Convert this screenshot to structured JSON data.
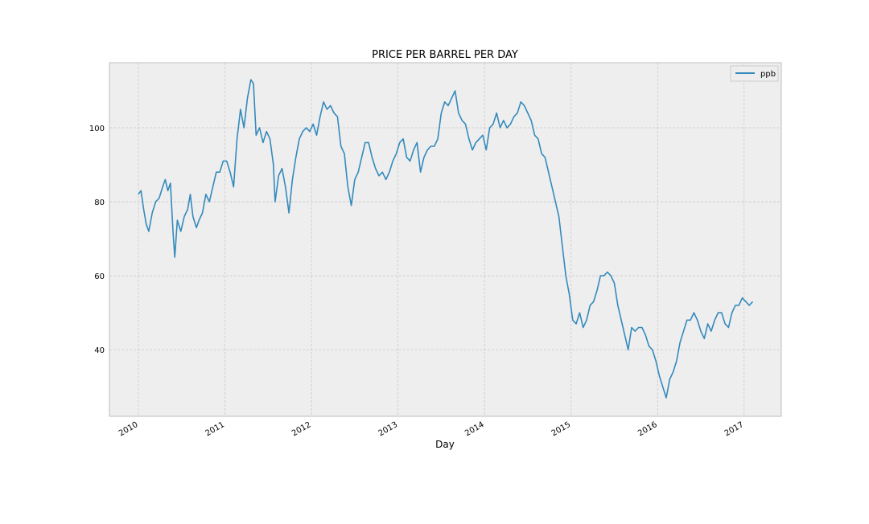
{
  "chart_data": {
    "type": "line",
    "title": "PRICE PER BARREL PER DAY",
    "xlabel": "Day",
    "x": [
      2010.0,
      2010.03,
      2010.06,
      2010.09,
      2010.12,
      2010.16,
      2010.2,
      2010.24,
      2010.28,
      2010.31,
      2010.34,
      2010.37,
      2010.4,
      2010.42,
      2010.45,
      2010.49,
      2010.53,
      2010.57,
      2010.6,
      2010.63,
      2010.67,
      2010.7,
      2010.74,
      2010.78,
      2010.82,
      2010.86,
      2010.9,
      2010.94,
      2010.98,
      2011.02,
      2011.06,
      2011.1,
      2011.14,
      2011.18,
      2011.22,
      2011.26,
      2011.3,
      2011.33,
      2011.36,
      2011.4,
      2011.44,
      2011.48,
      2011.52,
      2011.56,
      2011.58,
      2011.62,
      2011.66,
      2011.7,
      2011.74,
      2011.78,
      2011.82,
      2011.86,
      2011.9,
      2011.94,
      2011.98,
      2012.02,
      2012.06,
      2012.1,
      2012.14,
      2012.18,
      2012.22,
      2012.26,
      2012.3,
      2012.34,
      2012.38,
      2012.42,
      2012.46,
      2012.5,
      2012.54,
      2012.58,
      2012.62,
      2012.66,
      2012.7,
      2012.74,
      2012.78,
      2012.82,
      2012.86,
      2012.9,
      2012.94,
      2012.98,
      2013.02,
      2013.06,
      2013.1,
      2013.14,
      2013.18,
      2013.22,
      2013.26,
      2013.3,
      2013.34,
      2013.38,
      2013.42,
      2013.46,
      2013.5,
      2013.54,
      2013.58,
      2013.62,
      2013.66,
      2013.7,
      2013.74,
      2013.78,
      2013.82,
      2013.86,
      2013.9,
      2013.94,
      2013.98,
      2014.02,
      2014.06,
      2014.1,
      2014.14,
      2014.18,
      2014.22,
      2014.26,
      2014.3,
      2014.34,
      2014.38,
      2014.42,
      2014.46,
      2014.5,
      2014.54,
      2014.58,
      2014.62,
      2014.66,
      2014.7,
      2014.74,
      2014.78,
      2014.82,
      2014.86,
      2014.9,
      2014.94,
      2014.98,
      2015.02,
      2015.06,
      2015.1,
      2015.14,
      2015.18,
      2015.22,
      2015.26,
      2015.3,
      2015.34,
      2015.38,
      2015.42,
      2015.46,
      2015.5,
      2015.54,
      2015.58,
      2015.62,
      2015.66,
      2015.7,
      2015.74,
      2015.78,
      2015.82,
      2015.86,
      2015.9,
      2015.94,
      2015.98,
      2016.02,
      2016.06,
      2016.1,
      2016.14,
      2016.18,
      2016.22,
      2016.26,
      2016.3,
      2016.34,
      2016.38,
      2016.42,
      2016.46,
      2016.5,
      2016.54,
      2016.58,
      2016.62,
      2016.66,
      2016.7,
      2016.74,
      2016.78,
      2016.82,
      2016.86,
      2016.9,
      2016.94,
      2016.98,
      2017.02,
      2017.06,
      2017.1
    ],
    "series": [
      {
        "name": "ppb",
        "color": "#348abd",
        "values": [
          82,
          83,
          78,
          74,
          72,
          77,
          80,
          81,
          84,
          86,
          83,
          85,
          72,
          65,
          75,
          72,
          76,
          78,
          82,
          76,
          73,
          75,
          77,
          82,
          80,
          84,
          88,
          88,
          91,
          91,
          88,
          84,
          97,
          105,
          100,
          108,
          113,
          112,
          98,
          100,
          96,
          99,
          97,
          90,
          80,
          87,
          89,
          84,
          77,
          86,
          92,
          97,
          99,
          100,
          99,
          101,
          98,
          103,
          107,
          105,
          106,
          104,
          103,
          95,
          93,
          84,
          79,
          86,
          88,
          92,
          96,
          96,
          92,
          89,
          87,
          88,
          86,
          88,
          91,
          93,
          96,
          97,
          92,
          91,
          94,
          96,
          88,
          92,
          94,
          95,
          95,
          97,
          104,
          107,
          106,
          108,
          110,
          104,
          102,
          101,
          97,
          94,
          96,
          97,
          98,
          94,
          100,
          101,
          104,
          100,
          102,
          100,
          101,
          103,
          104,
          107,
          106,
          104,
          102,
          98,
          97,
          93,
          92,
          88,
          84,
          80,
          76,
          68,
          60,
          55,
          48,
          47,
          50,
          46,
          48,
          52,
          53,
          56,
          60,
          60,
          61,
          60,
          58,
          52,
          48,
          44,
          40,
          46,
          45,
          46,
          46,
          44,
          41,
          40,
          37,
          33,
          30,
          27,
          32,
          34,
          37,
          42,
          45,
          48,
          48,
          50,
          48,
          45,
          43,
          47,
          45,
          48,
          50,
          50,
          47,
          46,
          50,
          52,
          52,
          54,
          53,
          52,
          53
        ]
      }
    ],
    "xlim": [
      2009.665,
      2017.43
    ],
    "xticks": [
      2010,
      2011,
      2012,
      2013,
      2014,
      2015,
      2016,
      2017
    ],
    "ylim": [
      22,
      117.6
    ],
    "yticks": [
      40,
      60,
      80,
      100
    ],
    "grid": true,
    "legend": "upper right"
  }
}
